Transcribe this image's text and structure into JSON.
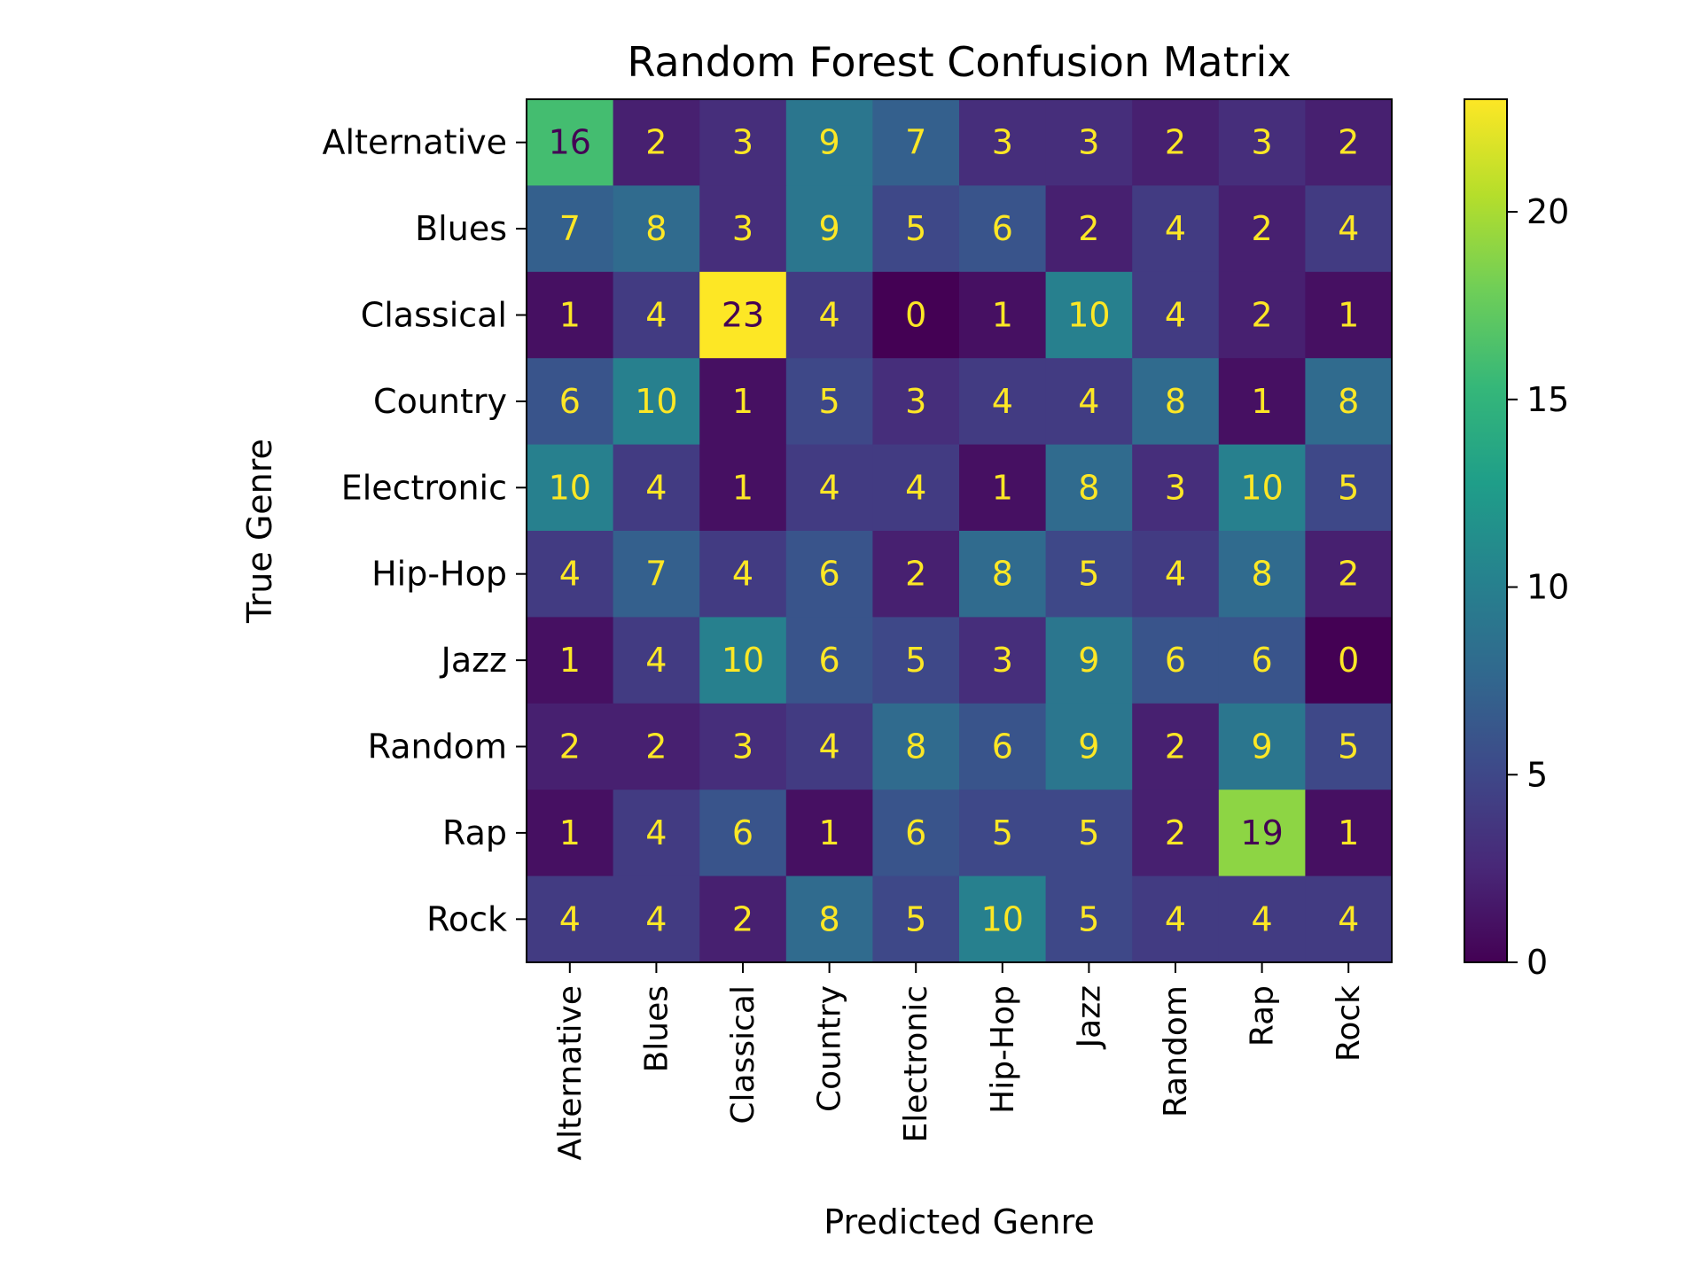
{
  "chart_data": {
    "type": "heatmap",
    "title": "Random Forest Confusion Matrix",
    "xlabel": "Predicted Genre",
    "ylabel": "True Genre",
    "x_categories": [
      "Alternative",
      "Blues",
      "Classical",
      "Country",
      "Electronic",
      "Hip-Hop",
      "Jazz",
      "Random",
      "Rap",
      "Rock"
    ],
    "y_categories": [
      "Alternative",
      "Blues",
      "Classical",
      "Country",
      "Electronic",
      "Hip-Hop",
      "Jazz",
      "Random",
      "Rap",
      "Rock"
    ],
    "values": [
      [
        16,
        2,
        3,
        9,
        7,
        3,
        3,
        2,
        3,
        2
      ],
      [
        7,
        8,
        3,
        9,
        5,
        6,
        2,
        4,
        2,
        4
      ],
      [
        1,
        4,
        23,
        4,
        0,
        1,
        10,
        4,
        2,
        1
      ],
      [
        6,
        10,
        1,
        5,
        3,
        4,
        4,
        8,
        1,
        8
      ],
      [
        10,
        4,
        1,
        4,
        4,
        1,
        8,
        3,
        10,
        5
      ],
      [
        4,
        7,
        4,
        6,
        2,
        8,
        5,
        4,
        8,
        2
      ],
      [
        1,
        4,
        10,
        6,
        5,
        3,
        9,
        6,
        6,
        0
      ],
      [
        2,
        2,
        3,
        4,
        8,
        6,
        9,
        2,
        9,
        5
      ],
      [
        1,
        4,
        6,
        1,
        6,
        5,
        5,
        2,
        19,
        1
      ],
      [
        4,
        4,
        2,
        8,
        5,
        10,
        5,
        4,
        4,
        4
      ]
    ],
    "colormap": "viridis",
    "colorbar": {
      "range": [
        0,
        23
      ],
      "ticks": [
        0,
        5,
        10,
        15,
        20
      ]
    },
    "grid": false
  }
}
